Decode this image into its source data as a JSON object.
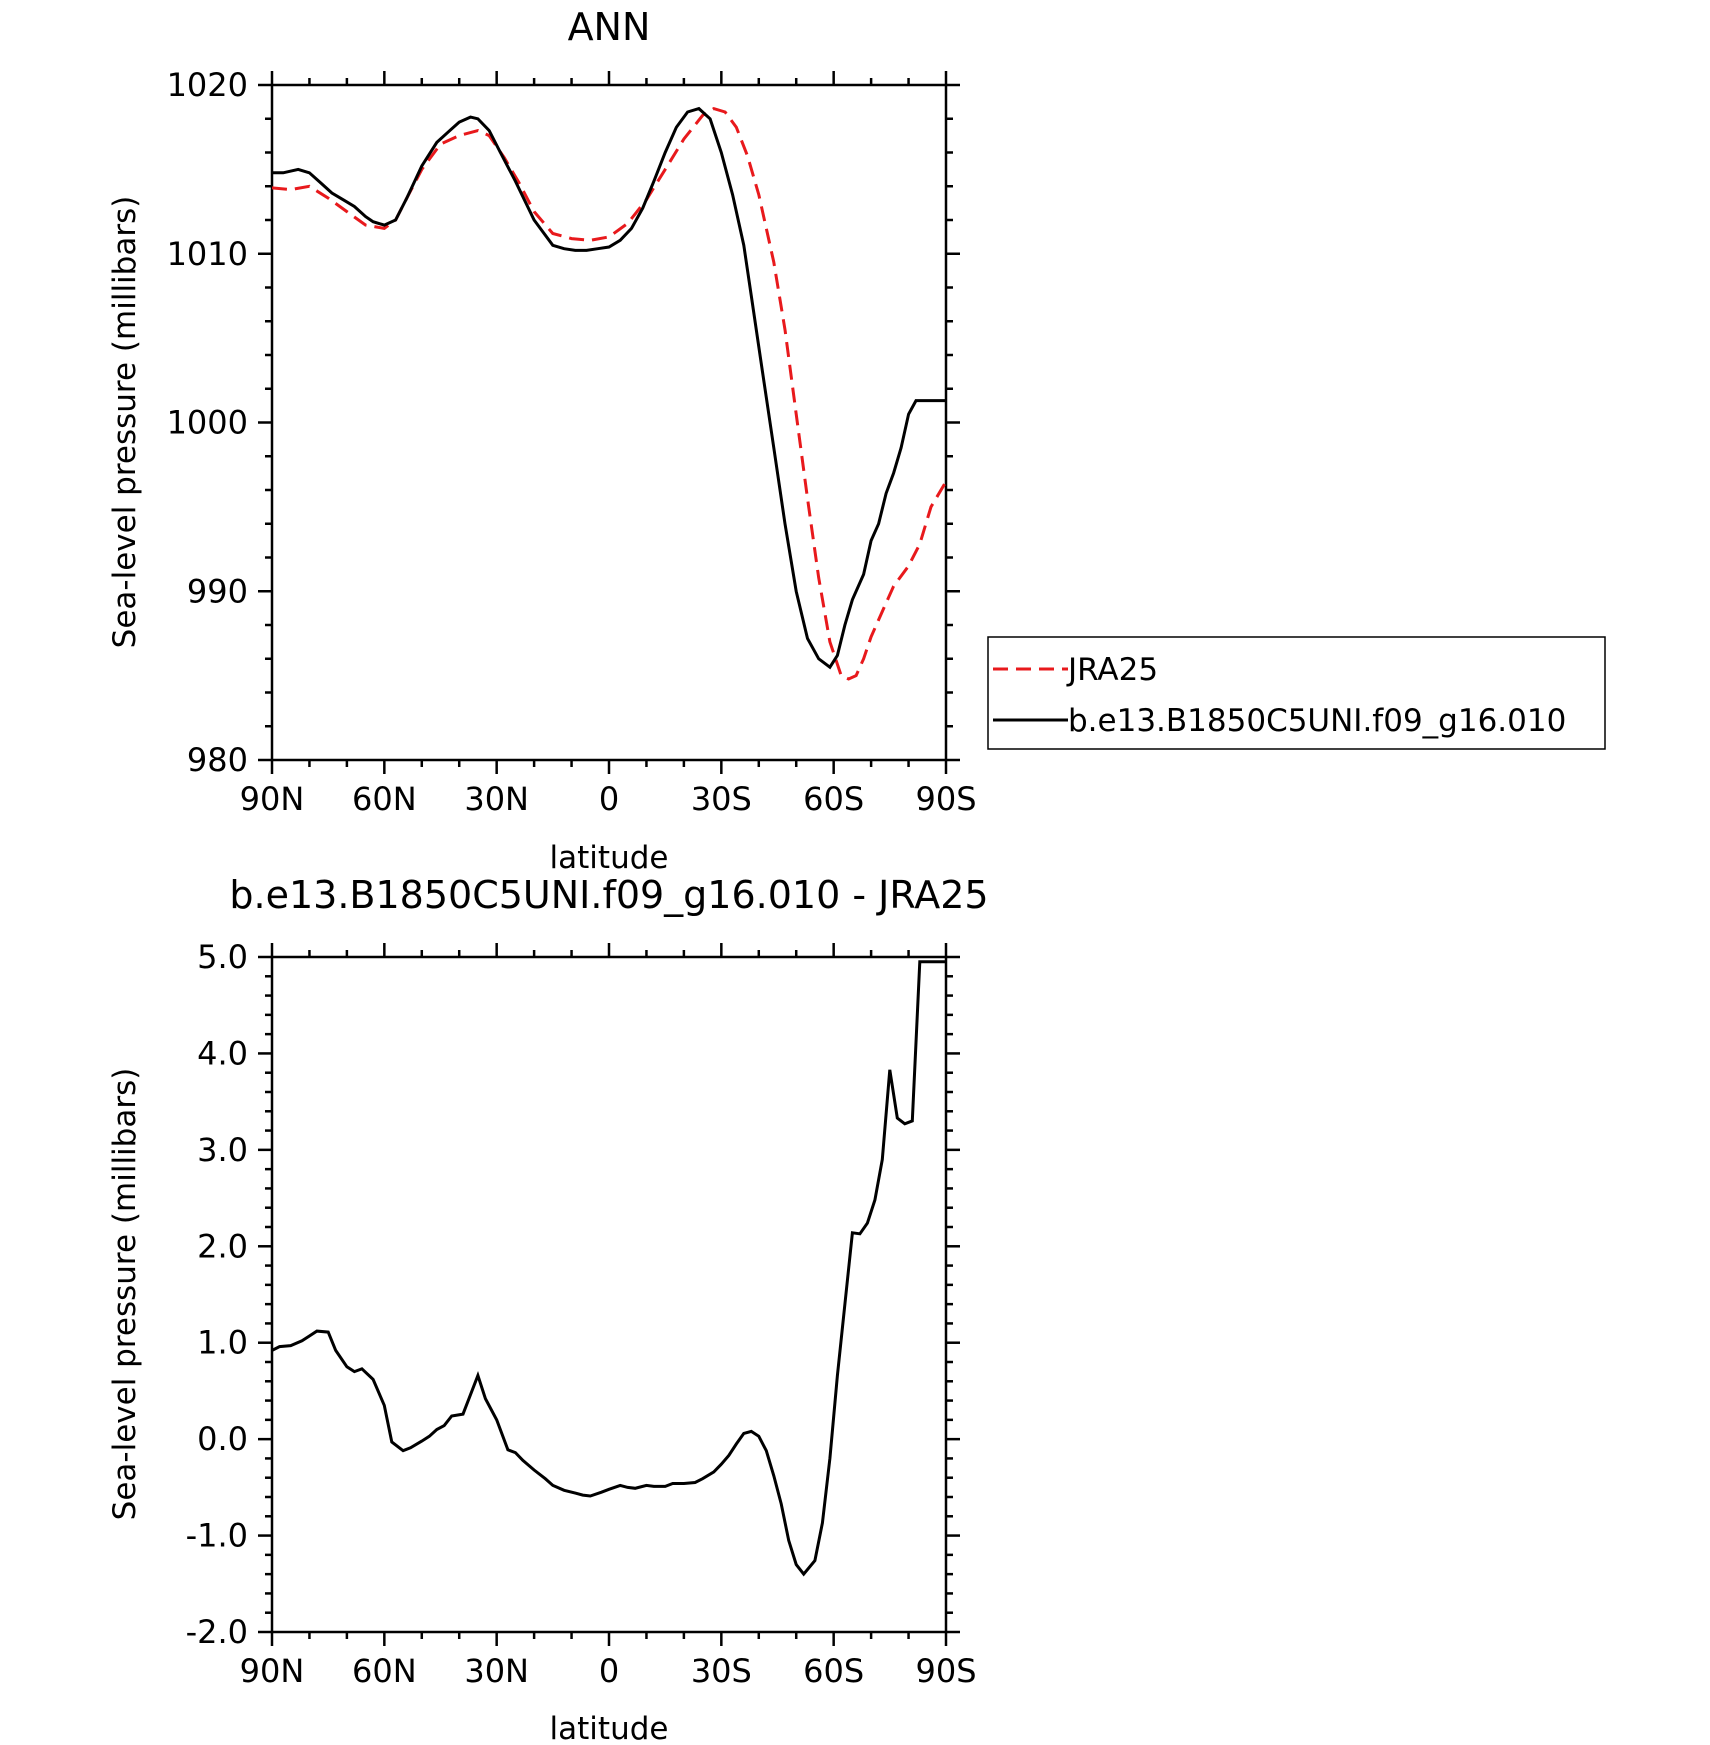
{
  "chart_data": [
    {
      "type": "line",
      "title": "ANN",
      "xlabel": "latitude",
      "ylabel": "Sea-level pressure (millibars)",
      "x_tick_labels": [
        "90N",
        "60N",
        "30N",
        "0",
        "30S",
        "60S",
        "90S"
      ],
      "y_tick_labels": [
        "980",
        "990",
        "1000",
        "1010",
        "1020"
      ],
      "xlim": [
        90,
        -90
      ],
      "ylim": [
        980,
        1020
      ],
      "grid": false,
      "legend_position": "right",
      "series": [
        {
          "name": "JRA25",
          "color": "#e8191c",
          "dash": "dashed",
          "x": [
            90,
            85,
            80,
            75,
            70,
            65,
            60,
            57,
            54,
            50,
            45,
            40,
            35,
            32,
            28,
            24,
            20,
            15,
            10,
            5,
            0,
            -5,
            -10,
            -15,
            -20,
            -25,
            -28,
            -31,
            -34,
            -37,
            -40,
            -44,
            -47,
            -50,
            -53,
            -56,
            -59,
            -62,
            -64,
            -66,
            -68,
            -70,
            -73,
            -76,
            -80,
            -83,
            -86,
            -90
          ],
          "y": [
            1013.9,
            1013.8,
            1014.0,
            1013.3,
            1012.5,
            1011.7,
            1011.5,
            1012.0,
            1013.3,
            1015.0,
            1016.5,
            1017.0,
            1017.3,
            1017.0,
            1015.7,
            1014.2,
            1012.5,
            1011.2,
            1010.9,
            1010.8,
            1011.0,
            1011.8,
            1013.2,
            1015.0,
            1016.8,
            1018.2,
            1018.6,
            1018.4,
            1017.5,
            1015.8,
            1013.5,
            1009.5,
            1005.5,
            1000.5,
            995.5,
            990.8,
            987.0,
            985.0,
            984.8,
            985.0,
            986.0,
            987.3,
            988.8,
            990.3,
            991.5,
            992.8,
            995.0,
            996.5
          ]
        },
        {
          "name": "b.e13.B1850C5UNI.f09_g16.010",
          "color": "#000000",
          "dash": "solid",
          "x": [
            90,
            87,
            83,
            80,
            77,
            74,
            71,
            68,
            65,
            63,
            60,
            57,
            54,
            50,
            46,
            43,
            40,
            37,
            35,
            32,
            29,
            25,
            20,
            15,
            12,
            9,
            6,
            3,
            0,
            -3,
            -6,
            -9,
            -12,
            -15,
            -18,
            -21,
            -24,
            -27,
            -30,
            -33,
            -36,
            -38,
            -41,
            -44,
            -47,
            -50,
            -53,
            -56,
            -59,
            -61,
            -63,
            -65,
            -68,
            -70,
            -72,
            -74,
            -76,
            -78,
            -80,
            -82,
            -84,
            -86,
            -88,
            -90
          ],
          "y": [
            1014.8,
            1014.8,
            1015.0,
            1014.8,
            1014.2,
            1013.6,
            1013.2,
            1012.8,
            1012.2,
            1011.9,
            1011.7,
            1012.0,
            1013.3,
            1015.2,
            1016.6,
            1017.2,
            1017.8,
            1018.1,
            1018.0,
            1017.3,
            1016.0,
            1014.3,
            1012.0,
            1010.5,
            1010.3,
            1010.2,
            1010.2,
            1010.3,
            1010.4,
            1010.8,
            1011.5,
            1012.7,
            1014.3,
            1016.0,
            1017.5,
            1018.4,
            1018.6,
            1018.0,
            1016.0,
            1013.5,
            1010.5,
            1007.5,
            1003.0,
            998.5,
            994.0,
            990.0,
            987.2,
            986.0,
            985.5,
            986.2,
            988.0,
            989.5,
            991.0,
            993.0,
            994.0,
            995.8,
            997.0,
            998.5,
            1000.5,
            1001.3,
            1001.3,
            1001.3,
            1001.3,
            1001.3
          ]
        }
      ]
    },
    {
      "type": "line",
      "title": "b.e13.B1850C5UNI.f09_g16.010 - JRA25",
      "xlabel": "latitude",
      "ylabel": "Sea-level pressure (millibars)",
      "x_tick_labels": [
        "90N",
        "60N",
        "30N",
        "0",
        "30S",
        "60S",
        "90S"
      ],
      "y_tick_labels": [
        "-2.0",
        "-1.0",
        "0.0",
        "1.0",
        "2.0",
        "3.0",
        "4.0",
        "5.0"
      ],
      "xlim": [
        90,
        -90
      ],
      "ylim": [
        -2.0,
        5.0
      ],
      "grid": false,
      "series": [
        {
          "color": "#000000",
          "dash": "solid",
          "x": [
            90,
            88,
            85,
            82,
            80,
            78,
            75,
            73,
            70,
            68,
            66,
            63,
            60,
            58,
            55,
            53,
            50,
            48,
            46,
            44,
            42,
            39,
            35,
            33,
            30,
            27,
            25,
            23,
            20,
            17,
            15,
            12,
            9,
            7,
            5,
            2,
            0,
            -3,
            -5,
            -7,
            -10,
            -12,
            -15,
            -17,
            -20,
            -23,
            -25,
            -28,
            -30,
            -32,
            -34,
            -36,
            -38,
            -40,
            -42,
            -44,
            -46,
            -48,
            -50,
            -52,
            -55,
            -57,
            -59,
            -61,
            -63,
            -65,
            -67,
            -69,
            -71,
            -73,
            -75,
            -77,
            -79,
            -81,
            -83,
            -85,
            -87,
            -89,
            -90
          ],
          "y": [
            0.92,
            0.96,
            0.97,
            1.02,
            1.07,
            1.12,
            1.11,
            0.92,
            0.75,
            0.7,
            0.73,
            0.62,
            0.35,
            -0.03,
            -0.12,
            -0.09,
            -0.02,
            0.03,
            0.1,
            0.14,
            0.24,
            0.26,
            0.66,
            0.42,
            0.2,
            -0.11,
            -0.14,
            -0.22,
            -0.32,
            -0.41,
            -0.48,
            -0.53,
            -0.56,
            -0.58,
            -0.59,
            -0.55,
            -0.52,
            -0.48,
            -0.5,
            -0.51,
            -0.48,
            -0.49,
            -0.49,
            -0.46,
            -0.46,
            -0.45,
            -0.41,
            -0.34,
            -0.26,
            -0.17,
            -0.05,
            0.06,
            0.08,
            0.03,
            -0.12,
            -0.38,
            -0.67,
            -1.05,
            -1.3,
            -1.4,
            -1.26,
            -0.87,
            -0.2,
            0.66,
            1.4,
            2.14,
            2.13,
            2.24,
            2.48,
            2.9,
            3.83,
            3.33,
            3.27,
            3.3,
            4.95,
            4.95,
            4.95,
            4.95,
            4.95
          ]
        }
      ]
    }
  ]
}
